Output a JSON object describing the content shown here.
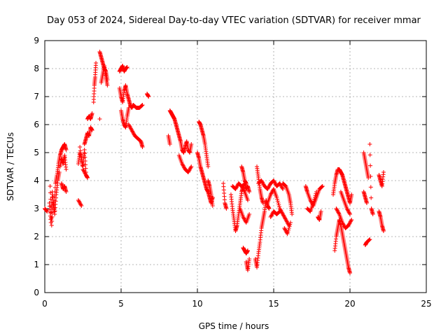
{
  "chart_data": {
    "type": "scatter",
    "title": "Day 053 of 2024, Sidereal Day-to-day VTEC variation (SDTVAR) for receiver mmar",
    "xlabel": "GPS time / hours",
    "ylabel": "SDTVAR / TECUs",
    "xlim": [
      0,
      25
    ],
    "ylim": [
      0,
      9
    ],
    "xticks": [
      0,
      5,
      10,
      15,
      20,
      25
    ],
    "yticks": [
      0,
      1,
      2,
      3,
      4,
      5,
      6,
      7,
      8,
      9
    ],
    "grid": true,
    "marker": "plus",
    "color": "#ff0000",
    "segments": [
      {
        "x": [
          0.0,
          0.15
        ],
        "y": [
          3.0,
          2.9
        ]
      },
      {
        "x": [
          0.3,
          0.4,
          0.5,
          0.6,
          0.7,
          0.8,
          0.9,
          1.0,
          1.1,
          1.2,
          1.3,
          1.4
        ],
        "y": [
          3.2,
          2.5,
          3.6,
          3.0,
          3.9,
          4.2,
          4.6,
          4.9,
          5.1,
          5.2,
          5.3,
          5.1
        ]
      },
      {
        "x": [
          0.35,
          0.45,
          0.55,
          0.65,
          0.75,
          0.85,
          0.95
        ],
        "y": [
          3.8,
          2.4,
          3.3,
          2.8,
          3.5,
          4.0,
          4.3
        ]
      },
      {
        "x": [
          1.1,
          1.2,
          1.3,
          1.4
        ],
        "y": [
          3.9,
          3.7,
          3.8,
          3.6
        ]
      },
      {
        "x": [
          1.0,
          1.1,
          1.2,
          1.3,
          1.4
        ],
        "y": [
          4.5,
          4.8,
          4.6,
          4.9,
          4.4
        ]
      },
      {
        "x": [
          2.2,
          2.4
        ],
        "y": [
          3.3,
          3.1
        ]
      },
      {
        "x": [
          2.2,
          2.3,
          2.4,
          2.5,
          2.6,
          2.7
        ],
        "y": [
          4.6,
          5.0,
          4.8,
          4.5,
          5.1,
          4.3
        ]
      },
      {
        "x": [
          2.3,
          2.5,
          2.7,
          2.8
        ],
        "y": [
          5.2,
          4.4,
          4.2,
          4.1
        ]
      },
      {
        "x": [
          2.6,
          2.7,
          2.8,
          2.9,
          3.0,
          3.1
        ],
        "y": [
          5.3,
          5.5,
          5.7,
          5.6,
          5.9,
          5.8
        ]
      },
      {
        "x": [
          2.8,
          2.9,
          3.0,
          3.1
        ],
        "y": [
          6.2,
          6.3,
          6.2,
          6.4
        ]
      },
      {
        "x": [
          3.2,
          3.25,
          3.3,
          3.35
        ],
        "y": [
          6.8,
          7.4,
          7.7,
          8.2
        ]
      },
      {
        "x": [
          3.6
        ],
        "y": [
          6.2
        ]
      },
      {
        "x": [
          3.6,
          3.7,
          3.8,
          3.9,
          4.0,
          4.1
        ],
        "y": [
          8.6,
          8.4,
          8.2,
          8.0,
          7.9,
          7.6
        ]
      },
      {
        "x": [
          3.7,
          3.8,
          3.9,
          4.0,
          4.1
        ],
        "y": [
          7.5,
          7.8,
          8.1,
          7.7,
          7.4
        ]
      },
      {
        "x": [
          4.9,
          5.0,
          5.1,
          5.2,
          5.3,
          5.4
        ],
        "y": [
          7.9,
          8.0,
          8.1,
          7.9,
          8.0,
          8.05
        ]
      },
      {
        "x": [
          4.9,
          5.0,
          5.1,
          5.2,
          5.3,
          5.4,
          5.5,
          5.6,
          5.7,
          5.8
        ],
        "y": [
          7.3,
          7.0,
          6.8,
          7.2,
          7.4,
          7.1,
          6.9,
          6.7,
          6.6,
          6.7
        ]
      },
      {
        "x": [
          5.0,
          5.1,
          5.2,
          5.3,
          5.4,
          5.5
        ],
        "y": [
          6.5,
          6.2,
          6.0,
          5.9,
          6.3,
          6.6
        ]
      },
      {
        "x": [
          5.5,
          5.7,
          5.9,
          6.1,
          6.3,
          6.4
        ],
        "y": [
          6.0,
          5.8,
          5.6,
          5.5,
          5.4,
          5.2
        ]
      },
      {
        "x": [
          5.8,
          6.0,
          6.2,
          6.4
        ],
        "y": [
          6.7,
          6.6,
          6.6,
          6.7
        ]
      },
      {
        "x": [
          6.7,
          6.8
        ],
        "y": [
          7.1,
          7.0
        ]
      },
      {
        "x": [
          8.1,
          8.2
        ],
        "y": [
          5.6,
          5.3
        ]
      },
      {
        "x": [
          8.2,
          8.3,
          8.4,
          8.5,
          8.6,
          8.7,
          8.8,
          8.9,
          9.0,
          9.1,
          9.2,
          9.3,
          9.4,
          9.5,
          9.6
        ],
        "y": [
          6.5,
          6.4,
          6.3,
          6.2,
          6.0,
          5.8,
          5.6,
          5.4,
          5.1,
          5.0,
          5.2,
          5.4,
          5.1,
          5.0,
          5.3
        ]
      },
      {
        "x": [
          8.8,
          9.0,
          9.2,
          9.4,
          9.6
        ],
        "y": [
          4.9,
          4.6,
          4.4,
          4.3,
          4.5
        ]
      },
      {
        "x": [
          10.1,
          10.2,
          10.3,
          10.4,
          10.5,
          10.6,
          10.7
        ],
        "y": [
          6.1,
          6.0,
          5.8,
          5.6,
          5.3,
          4.9,
          4.5
        ]
      },
      {
        "x": [
          10.0,
          10.1,
          10.2,
          10.3,
          10.4,
          10.5,
          10.6,
          10.7,
          10.8,
          10.9,
          11.0
        ],
        "y": [
          5.0,
          4.8,
          4.5,
          4.3,
          4.1,
          3.9,
          3.7,
          3.6,
          3.4,
          3.2,
          3.4
        ]
      },
      {
        "x": [
          10.7,
          10.8,
          10.9,
          11.0
        ],
        "y": [
          4.0,
          3.8,
          3.5,
          3.1
        ]
      },
      {
        "x": [
          11.7,
          11.8,
          11.9
        ],
        "y": [
          3.9,
          3.2,
          3.0
        ]
      },
      {
        "x": [
          12.2,
          12.3,
          12.4,
          12.5,
          12.6,
          12.7,
          12.8,
          12.9,
          13.0,
          13.1,
          13.2,
          13.3,
          13.4
        ],
        "y": [
          3.5,
          3.0,
          2.6,
          2.2,
          2.4,
          2.8,
          3.2,
          3.6,
          3.8,
          3.9,
          3.7,
          3.8,
          3.6
        ]
      },
      {
        "x": [
          12.3,
          12.5,
          12.7,
          12.9,
          13.1,
          13.3
        ],
        "y": [
          3.8,
          3.7,
          3.9,
          3.8,
          3.6,
          3.3
        ]
      },
      {
        "x": [
          12.9,
          13.0,
          13.1,
          13.2
        ],
        "y": [
          4.5,
          4.3,
          4.0,
          3.9
        ]
      },
      {
        "x": [
          12.8,
          13.0,
          13.2,
          13.4
        ],
        "y": [
          3.0,
          2.7,
          2.5,
          2.8
        ]
      },
      {
        "x": [
          13.0,
          13.1,
          13.2,
          13.3
        ],
        "y": [
          1.6,
          1.5,
          1.4,
          1.5
        ]
      },
      {
        "x": [
          13.2,
          13.3,
          13.4
        ],
        "y": [
          1.1,
          0.8,
          1.2
        ]
      },
      {
        "x": [
          13.8,
          13.9,
          14.0,
          14.1,
          14.2,
          14.3,
          14.4,
          14.5,
          14.6,
          14.7
        ],
        "y": [
          1.2,
          0.9,
          1.4,
          1.8,
          2.3,
          2.6,
          2.9,
          3.3,
          3.1,
          3.0
        ]
      },
      {
        "x": [
          13.9,
          14.0,
          14.1,
          14.2,
          14.3
        ],
        "y": [
          4.5,
          4.1,
          3.7,
          3.4,
          3.2
        ]
      },
      {
        "x": [
          14.0,
          14.2,
          14.4,
          14.6,
          14.8,
          15.0,
          15.2,
          15.4,
          15.6
        ],
        "y": [
          3.9,
          4.0,
          3.8,
          3.7,
          3.9,
          4.0,
          3.8,
          3.9,
          3.7
        ]
      },
      {
        "x": [
          14.6,
          14.8,
          15.0,
          15.2,
          15.4,
          15.6,
          15.8,
          16.0
        ],
        "y": [
          3.2,
          3.5,
          3.7,
          3.4,
          3.0,
          2.8,
          2.6,
          2.4
        ]
      },
      {
        "x": [
          14.8,
          15.0,
          15.2,
          15.4
        ],
        "y": [
          2.7,
          2.9,
          2.8,
          2.9
        ]
      },
      {
        "x": [
          15.6,
          15.8,
          16.0,
          16.1,
          16.2
        ],
        "y": [
          3.9,
          3.8,
          3.5,
          3.2,
          2.8
        ]
      },
      {
        "x": [
          15.7,
          15.9,
          16.1
        ],
        "y": [
          2.3,
          2.1,
          2.5
        ]
      },
      {
        "x": [
          17.1,
          17.2,
          17.4,
          17.6,
          17.8,
          18.0,
          18.2
        ],
        "y": [
          3.8,
          3.6,
          3.3,
          3.1,
          3.4,
          3.7,
          3.8
        ]
      },
      {
        "x": [
          17.2,
          17.4,
          17.6,
          17.8
        ],
        "y": [
          3.0,
          2.9,
          3.2,
          3.6
        ]
      },
      {
        "x": [
          17.9,
          18.0,
          18.1
        ],
        "y": [
          2.7,
          2.6,
          2.9
        ]
      },
      {
        "x": [
          18.9,
          19.0,
          19.1,
          19.2,
          19.3,
          19.4,
          19.5,
          19.6,
          19.7,
          19.8,
          19.9,
          20.0,
          20.1
        ],
        "y": [
          3.5,
          3.9,
          4.2,
          4.4,
          4.4,
          4.3,
          4.2,
          4.0,
          3.8,
          3.6,
          3.4,
          3.2,
          3.5
        ]
      },
      {
        "x": [
          19.0,
          19.1,
          19.2,
          19.3,
          19.4,
          19.5,
          19.6,
          19.7,
          19.8,
          19.9,
          20.0
        ],
        "y": [
          1.5,
          2.0,
          2.3,
          2.6,
          2.4,
          2.1,
          1.8,
          1.5,
          1.2,
          0.9,
          0.7
        ]
      },
      {
        "x": [
          19.1,
          19.3,
          19.5,
          19.7,
          19.9,
          20.1
        ],
        "y": [
          3.0,
          2.8,
          2.5,
          2.3,
          2.4,
          2.6
        ]
      },
      {
        "x": [
          19.4,
          19.6,
          19.8,
          20.0
        ],
        "y": [
          3.6,
          3.3,
          3.0,
          2.8
        ]
      },
      {
        "x": [
          20.9,
          21.0,
          21.1,
          21.2
        ],
        "y": [
          5.0,
          4.7,
          4.4,
          4.1
        ]
      },
      {
        "x": [
          20.9,
          21.0,
          21.1
        ],
        "y": [
          3.6,
          3.4,
          3.2
        ]
      },
      {
        "x": [
          21.0,
          21.1,
          21.3
        ],
        "y": [
          1.7,
          1.8,
          1.9
        ]
      },
      {
        "x": [
          21.3,
          21.4,
          21.5
        ],
        "y": [
          5.3,
          3.0,
          2.8
        ]
      },
      {
        "x": [
          21.9,
          22.0,
          22.1,
          22.2
        ],
        "y": [
          4.2,
          4.0,
          3.8,
          4.3
        ]
      },
      {
        "x": [
          21.9,
          22.0,
          22.1,
          22.2
        ],
        "y": [
          2.9,
          2.7,
          2.4,
          2.2
        ]
      }
    ]
  }
}
